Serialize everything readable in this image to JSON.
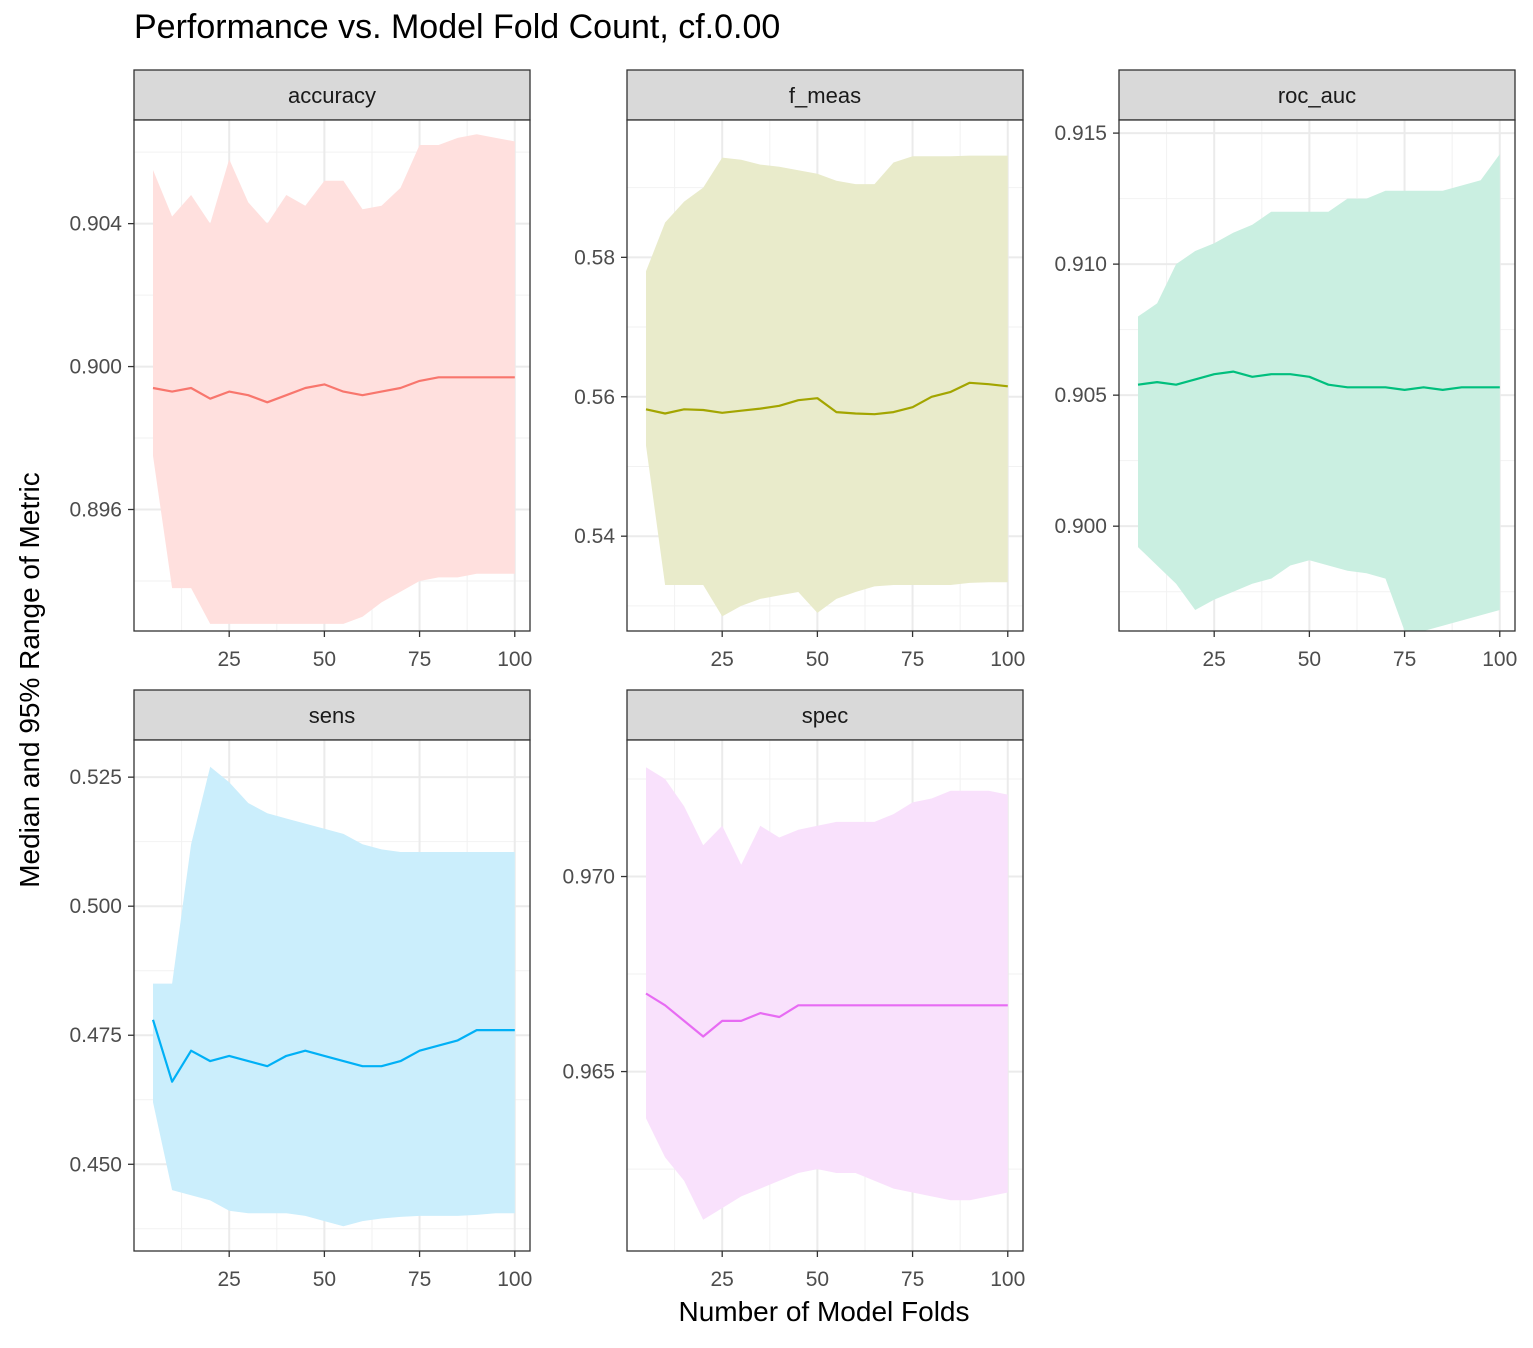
{
  "title": "Performance vs. Model Fold Count, cf.0.00",
  "xlabel": "Number of Model Folds",
  "ylabel": "Median and 95% Range of Metric",
  "chart_data": [
    {
      "type": "line",
      "panel": "accuracy",
      "color": "#F8766D",
      "fill": "#FFE0DE",
      "xlim": [
        0,
        104
      ],
      "ylim": [
        0.8926,
        0.9069
      ],
      "xticks": [
        25,
        50,
        75,
        100
      ],
      "yticks": [
        0.896,
        0.9,
        0.904
      ],
      "ytick_labels": [
        "0.896",
        "0.900",
        "0.904"
      ],
      "x": [
        5,
        10,
        15,
        20,
        25,
        30,
        35,
        40,
        45,
        50,
        55,
        60,
        65,
        70,
        75,
        80,
        85,
        90,
        95,
        100
      ],
      "median": [
        0.8994,
        0.8993,
        0.8994,
        0.8991,
        0.8993,
        0.8992,
        0.899,
        0.8992,
        0.8994,
        0.8995,
        0.8993,
        0.8992,
        0.8993,
        0.8994,
        0.8996,
        0.8997,
        0.8997,
        0.8997,
        0.8997,
        0.8997
      ],
      "lower": [
        0.8975,
        0.8938,
        0.8938,
        0.8928,
        0.8928,
        0.8928,
        0.8928,
        0.8928,
        0.8928,
        0.8928,
        0.8928,
        0.893,
        0.8934,
        0.8937,
        0.894,
        0.8941,
        0.8941,
        0.8942,
        0.8942,
        0.8942
      ],
      "upper": [
        0.9055,
        0.9042,
        0.9048,
        0.904,
        0.9058,
        0.9046,
        0.904,
        0.9048,
        0.9045,
        0.9052,
        0.9052,
        0.9044,
        0.9045,
        0.905,
        0.9062,
        0.9062,
        0.9064,
        0.9065,
        0.9064,
        0.9063
      ]
    },
    {
      "type": "line",
      "panel": "f_meas",
      "color": "#A3A500",
      "fill": "#E9EBCB",
      "xlim": [
        0,
        104
      ],
      "ylim": [
        0.5264,
        0.5997
      ],
      "xticks": [
        25,
        50,
        75,
        100
      ],
      "yticks": [
        0.54,
        0.56,
        0.58
      ],
      "ytick_labels": [
        "0.54",
        "0.56",
        "0.58"
      ],
      "x": [
        5,
        10,
        15,
        20,
        25,
        30,
        35,
        40,
        45,
        50,
        55,
        60,
        65,
        70,
        75,
        80,
        85,
        90,
        95,
        100
      ],
      "median": [
        0.5582,
        0.5576,
        0.5582,
        0.5581,
        0.5577,
        0.558,
        0.5583,
        0.5587,
        0.5595,
        0.5598,
        0.5578,
        0.5576,
        0.5575,
        0.5578,
        0.5585,
        0.56,
        0.5607,
        0.562,
        0.5618,
        0.5615
      ],
      "lower": [
        0.553,
        0.533,
        0.533,
        0.533,
        0.5285,
        0.53,
        0.531,
        0.5315,
        0.532,
        0.529,
        0.531,
        0.532,
        0.5328,
        0.533,
        0.533,
        0.533,
        0.533,
        0.5333,
        0.5334,
        0.5334
      ],
      "upper": [
        0.578,
        0.585,
        0.588,
        0.59,
        0.5943,
        0.594,
        0.5933,
        0.593,
        0.5925,
        0.592,
        0.591,
        0.5905,
        0.5905,
        0.5936,
        0.5945,
        0.5945,
        0.5945,
        0.5946,
        0.5946,
        0.5946
      ]
    },
    {
      "type": "line",
      "panel": "roc_auc",
      "color": "#00BF7D",
      "fill": "#CAEFE1",
      "xlim": [
        0,
        104
      ],
      "ylim": [
        0.896,
        0.9155
      ],
      "xticks": [
        25,
        50,
        75,
        100
      ],
      "yticks": [
        0.9,
        0.905,
        0.91,
        0.915
      ],
      "ytick_labels": [
        "0.900",
        "0.905",
        "0.910",
        "0.915"
      ],
      "x": [
        5,
        10,
        15,
        20,
        25,
        30,
        35,
        40,
        45,
        50,
        55,
        60,
        65,
        70,
        75,
        80,
        85,
        90,
        95,
        100
      ],
      "median": [
        0.9054,
        0.9055,
        0.9054,
        0.9056,
        0.9058,
        0.9059,
        0.9057,
        0.9058,
        0.9058,
        0.9057,
        0.9054,
        0.9053,
        0.9053,
        0.9053,
        0.9052,
        0.9053,
        0.9052,
        0.9053,
        0.9053,
        0.9053
      ],
      "lower": [
        0.8992,
        0.8985,
        0.8978,
        0.8968,
        0.8972,
        0.8975,
        0.8978,
        0.898,
        0.8985,
        0.8987,
        0.8985,
        0.8983,
        0.8982,
        0.898,
        0.896,
        0.896,
        0.8962,
        0.8964,
        0.8966,
        0.8968
      ],
      "upper": [
        0.908,
        0.9085,
        0.91,
        0.9105,
        0.9108,
        0.9112,
        0.9115,
        0.912,
        0.912,
        0.912,
        0.912,
        0.9125,
        0.9125,
        0.9128,
        0.9128,
        0.9128,
        0.9128,
        0.913,
        0.9132,
        0.9142
      ]
    },
    {
      "type": "line",
      "panel": "sens",
      "color": "#00B0F6",
      "fill": "#CBEEFC",
      "xlim": [
        0,
        104
      ],
      "ylim": [
        0.4332,
        0.5322
      ],
      "xticks": [
        25,
        50,
        75,
        100
      ],
      "yticks": [
        0.45,
        0.475,
        0.5,
        0.525
      ],
      "ytick_labels": [
        "0.450",
        "0.475",
        "0.500",
        "0.525"
      ],
      "x": [
        5,
        10,
        15,
        20,
        25,
        30,
        35,
        40,
        45,
        50,
        55,
        60,
        65,
        70,
        75,
        80,
        85,
        90,
        95,
        100
      ],
      "median": [
        0.478,
        0.466,
        0.472,
        0.47,
        0.471,
        0.47,
        0.469,
        0.471,
        0.472,
        0.471,
        0.47,
        0.469,
        0.469,
        0.47,
        0.472,
        0.473,
        0.474,
        0.476,
        0.476,
        0.476
      ],
      "lower": [
        0.462,
        0.445,
        0.444,
        0.443,
        0.441,
        0.4405,
        0.4405,
        0.4405,
        0.44,
        0.439,
        0.438,
        0.439,
        0.4395,
        0.4398,
        0.44,
        0.44,
        0.44,
        0.4402,
        0.4405,
        0.4405
      ],
      "upper": [
        0.485,
        0.485,
        0.512,
        0.527,
        0.524,
        0.52,
        0.518,
        0.517,
        0.516,
        0.515,
        0.514,
        0.512,
        0.511,
        0.5105,
        0.5105,
        0.5105,
        0.5105,
        0.5105,
        0.5105,
        0.5105
      ]
    },
    {
      "type": "line",
      "panel": "spec",
      "color": "#E76BF3",
      "fill": "#F9E1FC",
      "xlim": [
        0,
        104
      ],
      "ylim": [
        0.9604,
        0.9735
      ],
      "xticks": [
        25,
        50,
        75,
        100
      ],
      "yticks": [
        0.965,
        0.97
      ],
      "ytick_labels": [
        "0.965",
        "0.970"
      ],
      "x": [
        5,
        10,
        15,
        20,
        25,
        30,
        35,
        40,
        45,
        50,
        55,
        60,
        65,
        70,
        75,
        80,
        85,
        90,
        95,
        100
      ],
      "median": [
        0.967,
        0.9667,
        0.9663,
        0.9659,
        0.9663,
        0.9663,
        0.9665,
        0.9664,
        0.9667,
        0.9667,
        0.9667,
        0.9667,
        0.9667,
        0.9667,
        0.9667,
        0.9667,
        0.9667,
        0.9667,
        0.9667,
        0.9667
      ],
      "lower": [
        0.9638,
        0.9628,
        0.9622,
        0.9612,
        0.9615,
        0.9618,
        0.962,
        0.9622,
        0.9624,
        0.9625,
        0.9624,
        0.9624,
        0.9622,
        0.962,
        0.9619,
        0.9618,
        0.9617,
        0.9617,
        0.9618,
        0.9619
      ],
      "upper": [
        0.9728,
        0.9725,
        0.9718,
        0.9708,
        0.9713,
        0.9703,
        0.9713,
        0.971,
        0.9712,
        0.9713,
        0.9714,
        0.9714,
        0.9714,
        0.9716,
        0.9719,
        0.972,
        0.9722,
        0.9722,
        0.9722,
        0.9721
      ]
    }
  ]
}
